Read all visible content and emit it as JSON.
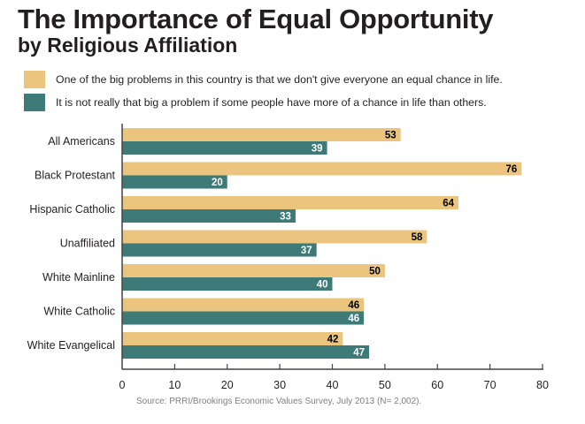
{
  "chart_data": {
    "type": "bar",
    "orientation": "horizontal",
    "title": "The Importance of Equal Opportunity",
    "subtitle": "by Religious Affiliation",
    "categories": [
      "All Americans",
      "Black Protestant",
      "Hispanic Catholic",
      "Unaffiliated",
      "White Mainline",
      "White Catholic",
      "White Evangelical"
    ],
    "series": [
      {
        "name": "One of the big problems in this country is that we don't give everyone an equal chance in life.",
        "color": "#EBC47E",
        "values": [
          53,
          76,
          64,
          58,
          50,
          46,
          42
        ]
      },
      {
        "name": "It is not really that big a problem if some people have more of a chance in life than others.",
        "color": "#3D7A78",
        "values": [
          39,
          20,
          33,
          37,
          40,
          46,
          47
        ]
      }
    ],
    "xlabel": "",
    "ylabel": "",
    "xlim": [
      0,
      80
    ],
    "xticks": [
      0,
      10,
      20,
      30,
      40,
      50,
      60,
      70,
      80
    ],
    "grid": false,
    "legend_position": "top-left",
    "source": "Source: PRRI/Brookings Economic Values Survey, July 2013 (N= 2,002)."
  }
}
